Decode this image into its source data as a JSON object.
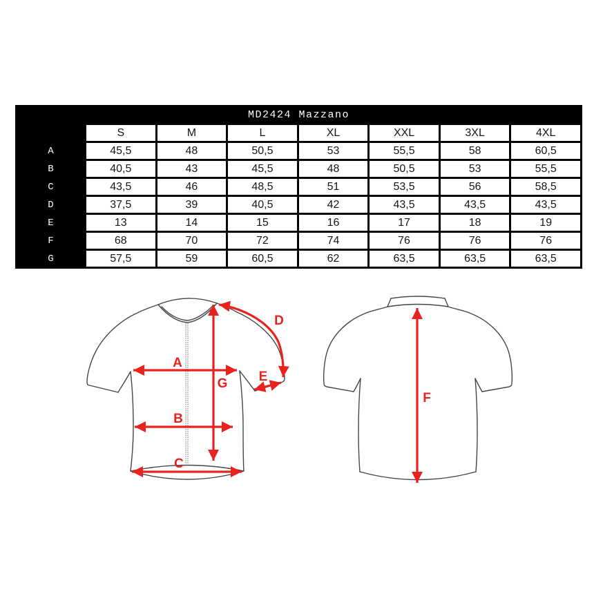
{
  "title": "MD2424 Mazzano",
  "chart_data": {
    "type": "table",
    "title": "MD2424 Mazzano",
    "columns": [
      "S",
      "M",
      "L",
      "XL",
      "XXL",
      "3XL",
      "4XL"
    ],
    "rows": [
      {
        "label": "A",
        "values": [
          "45,5",
          "48",
          "50,5",
          "53",
          "55,5",
          "58",
          "60,5"
        ]
      },
      {
        "label": "B",
        "values": [
          "40,5",
          "43",
          "45,5",
          "48",
          "50,5",
          "53",
          "55,5"
        ]
      },
      {
        "label": "C",
        "values": [
          "43,5",
          "46",
          "48,5",
          "51",
          "53,5",
          "56",
          "58,5"
        ]
      },
      {
        "label": "D",
        "values": [
          "37,5",
          "39",
          "40,5",
          "42",
          "43,5",
          "43,5",
          "43,5"
        ]
      },
      {
        "label": "E",
        "values": [
          "13",
          "14",
          "15",
          "16",
          "17",
          "18",
          "19"
        ]
      },
      {
        "label": "F",
        "values": [
          "68",
          "70",
          "72",
          "74",
          "76",
          "76",
          "76"
        ]
      },
      {
        "label": "G",
        "values": [
          "57,5",
          "59",
          "60,5",
          "62",
          "63,5",
          "63,5",
          "63,5"
        ]
      }
    ]
  },
  "diagram": {
    "views": [
      "front-jersey",
      "back-jersey"
    ],
    "labels": {
      "A": "A",
      "B": "B",
      "C": "C",
      "D": "D",
      "E": "E",
      "F": "F",
      "G": "G"
    },
    "arrow_color": "#e8231e",
    "outline_color": "#454545"
  },
  "colors": {
    "table_frame": "#000000",
    "table_cell_bg": "#ffffff",
    "table_text": "#161616",
    "table_header_text": "#ffffff"
  }
}
